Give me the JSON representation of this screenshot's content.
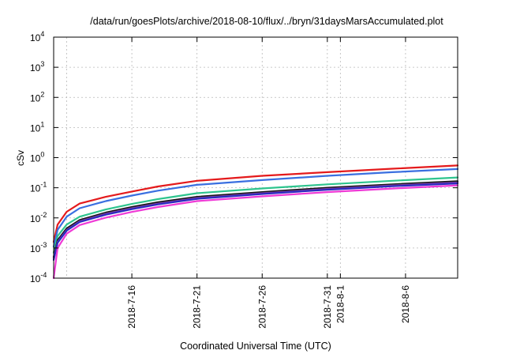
{
  "chart_data": {
    "type": "line",
    "title": "/data/run/goesPlots/archive/2018-08-10/flux/../bryn/31daysMarsAccumulated.plot",
    "xlabel": "Coordinated Universal Time (UTC)",
    "ylabel": "cSv",
    "yscale": "log",
    "ylim": [
      0.0001,
      10000
    ],
    "xlim": [
      "2018-07-10",
      "2018-08-10"
    ],
    "grid": true,
    "y_ticks": [
      {
        "base": "10",
        "exp": "-4",
        "value": 0.0001
      },
      {
        "base": "10",
        "exp": "-3",
        "value": 0.001
      },
      {
        "base": "10",
        "exp": "-2",
        "value": 0.01
      },
      {
        "base": "10",
        "exp": "-1",
        "value": 0.1
      },
      {
        "base": "10",
        "exp": "0",
        "value": 1
      },
      {
        "base": "10",
        "exp": "1",
        "value": 10
      },
      {
        "base": "10",
        "exp": "2",
        "value": 100
      },
      {
        "base": "10",
        "exp": "3",
        "value": 1000
      },
      {
        "base": "10",
        "exp": "4",
        "value": 10000
      }
    ],
    "x_ticks": [
      {
        "label": "2018-7-16",
        "date": "2018-07-16"
      },
      {
        "label": "2018-7-21",
        "date": "2018-07-21"
      },
      {
        "label": "2018-7-26",
        "date": "2018-07-26"
      },
      {
        "label": "2018-7-31",
        "date": "2018-07-31"
      },
      {
        "label": "2018-8-1",
        "date": "2018-08-01"
      },
      {
        "label": "2018-8-6",
        "date": "2018-08-06"
      }
    ],
    "x_minor_grid_dates": [
      "2018-07-11",
      "2018-08-11"
    ],
    "x": [
      "2018-07-10",
      "2018-07-10.3",
      "2018-07-11",
      "2018-07-12",
      "2018-07-14",
      "2018-07-16",
      "2018-07-18",
      "2018-07-21",
      "2018-07-26",
      "2018-07-31",
      "2018-08-05",
      "2018-08-10"
    ],
    "series": [
      {
        "color": "#e41a1c",
        "values": [
          0.0016,
          0.006,
          0.016,
          0.03,
          0.05,
          0.075,
          0.11,
          0.17,
          0.25,
          0.33,
          0.43,
          0.55
        ]
      },
      {
        "color": "#3a6fe0",
        "values": [
          0.0011,
          0.004,
          0.011,
          0.021,
          0.036,
          0.055,
          0.08,
          0.125,
          0.18,
          0.25,
          0.33,
          0.42
        ]
      },
      {
        "color": "#2ec48e",
        "values": [
          0.0007,
          0.0025,
          0.006,
          0.011,
          0.019,
          0.029,
          0.042,
          0.066,
          0.095,
          0.13,
          0.17,
          0.22
        ]
      },
      {
        "color": "#141414",
        "values": [
          0.0005,
          0.0018,
          0.0045,
          0.0085,
          0.015,
          0.023,
          0.033,
          0.05,
          0.072,
          0.1,
          0.13,
          0.165
        ]
      },
      {
        "color": "#7a3da0",
        "values": [
          0.00045,
          0.0016,
          0.004,
          0.0078,
          0.0138,
          0.021,
          0.03,
          0.046,
          0.066,
          0.092,
          0.12,
          0.15
        ]
      },
      {
        "color": "#2a2ac0",
        "values": [
          0.0004,
          0.0015,
          0.0038,
          0.0073,
          0.0128,
          0.0195,
          0.028,
          0.043,
          0.062,
          0.086,
          0.112,
          0.14
        ]
      },
      {
        "color": "#ef3ad6",
        "values": [
          0.0001,
          0.001,
          0.003,
          0.0058,
          0.0102,
          0.0158,
          0.023,
          0.036,
          0.052,
          0.072,
          0.094,
          0.12
        ]
      }
    ]
  }
}
